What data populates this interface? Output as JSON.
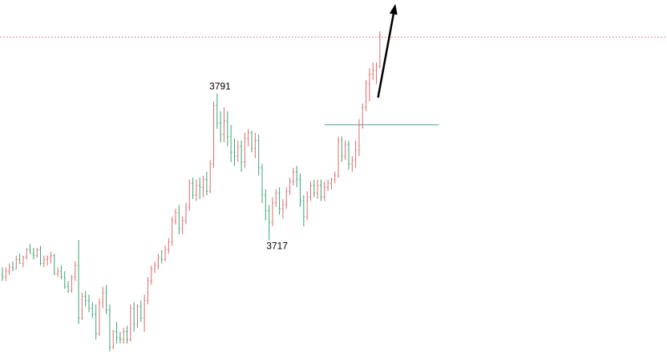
{
  "chart_data": {
    "type": "candlestick",
    "ylim": [
      3653,
      3838
    ],
    "grid": false,
    "colors": {
      "up": "#e06a6a",
      "down": "#3aa374",
      "resistance": "#e06a6a",
      "support": "#4aa59a",
      "arrow": "#000000"
    },
    "annotations": [
      {
        "text": "3791",
        "bar": 61,
        "value": 3791
      },
      {
        "text": "3717",
        "bar": 77,
        "value": 3717
      }
    ],
    "lines": [
      {
        "name": "resistance",
        "value": 3819,
        "style": "dotted"
      },
      {
        "name": "support",
        "value": 3774,
        "style": "solid",
        "from_bar": 93,
        "to_bar": 126
      }
    ],
    "arrow": {
      "from_bar": 108,
      "from_value": 3788,
      "to_bar": 113,
      "to_value": 3836
    },
    "bars": [
      [
        3697,
        3701,
        3694,
        3696
      ],
      [
        3696,
        3701,
        3694,
        3699
      ],
      [
        3699,
        3703,
        3697,
        3701
      ],
      [
        3701,
        3704,
        3699,
        3700
      ],
      [
        3700,
        3707,
        3700,
        3705
      ],
      [
        3705,
        3708,
        3703,
        3703
      ],
      [
        3703,
        3707,
        3701,
        3706
      ],
      [
        3706,
        3711,
        3705,
        3710
      ],
      [
        3710,
        3713,
        3708,
        3708
      ],
      [
        3708,
        3711,
        3705,
        3707
      ],
      [
        3707,
        3711,
        3706,
        3710
      ],
      [
        3710,
        3712,
        3702,
        3703
      ],
      [
        3703,
        3707,
        3701,
        3705
      ],
      [
        3705,
        3707,
        3702,
        3706
      ],
      [
        3706,
        3709,
        3703,
        3707
      ],
      [
        3707,
        3708,
        3697,
        3698
      ],
      [
        3698,
        3701,
        3696,
        3699
      ],
      [
        3699,
        3702,
        3695,
        3696
      ],
      [
        3696,
        3699,
        3690,
        3691
      ],
      [
        3691,
        3694,
        3688,
        3689
      ],
      [
        3689,
        3697,
        3688,
        3696
      ],
      [
        3696,
        3704,
        3694,
        3702
      ],
      [
        3702,
        3715,
        3672,
        3675
      ],
      [
        3675,
        3688,
        3674,
        3686
      ],
      [
        3686,
        3689,
        3681,
        3684
      ],
      [
        3684,
        3687,
        3678,
        3680
      ],
      [
        3680,
        3683,
        3675,
        3677
      ],
      [
        3677,
        3682,
        3664,
        3667
      ],
      [
        3667,
        3685,
        3666,
        3683
      ],
      [
        3683,
        3691,
        3680,
        3688
      ],
      [
        3688,
        3692,
        3677,
        3679
      ],
      [
        3679,
        3682,
        3658,
        3660
      ],
      [
        3660,
        3669,
        3659,
        3668
      ],
      [
        3668,
        3673,
        3662,
        3665
      ],
      [
        3665,
        3668,
        3662,
        3664
      ],
      [
        3664,
        3670,
        3662,
        3668
      ],
      [
        3668,
        3671,
        3662,
        3664
      ],
      [
        3664,
        3682,
        3663,
        3680
      ],
      [
        3680,
        3683,
        3668,
        3672
      ],
      [
        3672,
        3682,
        3670,
        3681
      ],
      [
        3681,
        3684,
        3673,
        3675
      ],
      [
        3675,
        3687,
        3668,
        3684
      ],
      [
        3684,
        3696,
        3682,
        3694
      ],
      [
        3694,
        3702,
        3692,
        3700
      ],
      [
        3700,
        3704,
        3698,
        3702
      ],
      [
        3702,
        3708,
        3700,
        3706
      ],
      [
        3706,
        3710,
        3703,
        3705
      ],
      [
        3705,
        3712,
        3704,
        3710
      ],
      [
        3710,
        3716,
        3708,
        3714
      ],
      [
        3714,
        3727,
        3712,
        3725
      ],
      [
        3725,
        3731,
        3723,
        3729
      ],
      [
        3729,
        3733,
        3718,
        3721
      ],
      [
        3721,
        3727,
        3718,
        3725
      ],
      [
        3725,
        3734,
        3723,
        3732
      ],
      [
        3732,
        3746,
        3730,
        3744
      ],
      [
        3744,
        3747,
        3736,
        3738
      ],
      [
        3738,
        3746,
        3735,
        3743
      ],
      [
        3743,
        3747,
        3736,
        3742
      ],
      [
        3742,
        3748,
        3737,
        3746
      ],
      [
        3746,
        3750,
        3738,
        3740
      ],
      [
        3740,
        3756,
        3739,
        3754
      ],
      [
        3754,
        3786,
        3752,
        3784
      ],
      [
        3784,
        3790,
        3772,
        3775
      ],
      [
        3775,
        3781,
        3765,
        3769
      ],
      [
        3769,
        3783,
        3765,
        3776
      ],
      [
        3776,
        3781,
        3763,
        3768
      ],
      [
        3768,
        3774,
        3755,
        3760
      ],
      [
        3760,
        3767,
        3753,
        3758
      ],
      [
        3758,
        3766,
        3755,
        3763
      ],
      [
        3763,
        3766,
        3750,
        3755
      ],
      [
        3755,
        3770,
        3752,
        3767
      ],
      [
        3767,
        3772,
        3763,
        3770
      ],
      [
        3770,
        3771,
        3760,
        3762
      ],
      [
        3762,
        3770,
        3757,
        3766
      ],
      [
        3766,
        3769,
        3748,
        3752
      ],
      [
        3752,
        3754,
        3734,
        3738
      ],
      [
        3738,
        3741,
        3725,
        3730
      ],
      [
        3730,
        3733,
        3715,
        3724
      ],
      [
        3724,
        3737,
        3722,
        3734
      ],
      [
        3734,
        3741,
        3732,
        3739
      ],
      [
        3739,
        3742,
        3728,
        3731
      ],
      [
        3731,
        3736,
        3726,
        3733
      ],
      [
        3733,
        3742,
        3731,
        3740
      ],
      [
        3740,
        3747,
        3738,
        3745
      ],
      [
        3745,
        3752,
        3743,
        3750
      ],
      [
        3750,
        3753,
        3742,
        3746
      ],
      [
        3746,
        3749,
        3732,
        3735
      ],
      [
        3735,
        3738,
        3722,
        3727
      ],
      [
        3727,
        3740,
        3725,
        3737
      ],
      [
        3737,
        3745,
        3735,
        3743
      ],
      [
        3743,
        3746,
        3737,
        3739
      ],
      [
        3739,
        3746,
        3736,
        3743
      ],
      [
        3743,
        3746,
        3735,
        3737
      ],
      [
        3737,
        3745,
        3735,
        3742
      ],
      [
        3742,
        3746,
        3740,
        3744
      ],
      [
        3744,
        3747,
        3741,
        3746
      ],
      [
        3746,
        3750,
        3744,
        3748
      ],
      [
        3748,
        3768,
        3747,
        3766
      ],
      [
        3766,
        3768,
        3755,
        3758
      ],
      [
        3758,
        3766,
        3756,
        3764
      ],
      [
        3764,
        3766,
        3751,
        3754
      ],
      [
        3754,
        3758,
        3750,
        3756
      ],
      [
        3756,
        3766,
        3752,
        3761
      ],
      [
        3761,
        3777,
        3758,
        3774
      ],
      [
        3774,
        3785,
        3772,
        3783
      ],
      [
        3783,
        3797,
        3781,
        3795
      ],
      [
        3795,
        3803,
        3786,
        3800
      ],
      [
        3800,
        3806,
        3797,
        3802
      ],
      [
        3802,
        3806,
        3795,
        3804
      ],
      [
        3804,
        3822,
        3803,
        3820
      ]
    ]
  }
}
